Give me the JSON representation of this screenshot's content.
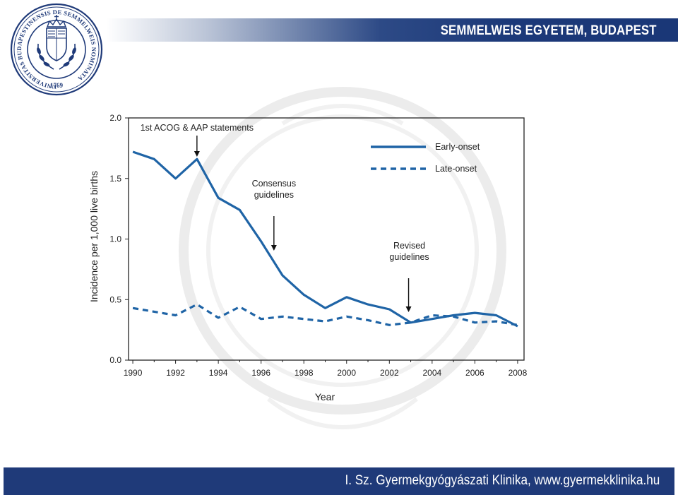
{
  "header": {
    "title": "SEMMELWEIS EGYETEM, BUDAPEST",
    "logo_ring_text": "UNIVERSITAS BUDAPESTINENSIS DE SEMMELWEIS NOMINATA",
    "logo_year": "1769"
  },
  "footer": {
    "text": "I. Sz. Gyermekgyógyászati Klinika, www.gyermekklinika.hu"
  },
  "colors": {
    "brand_navy": "#1f3a79",
    "series_blue": "#1f64a6"
  },
  "chart_data": {
    "type": "line",
    "xlabel": "Year",
    "ylabel": "Incidence per 1,000 live births",
    "xlim": [
      1989.8,
      2008.3
    ],
    "ylim": [
      0.0,
      2.0
    ],
    "x_ticks": [
      1990,
      1992,
      1994,
      1996,
      1998,
      2000,
      2002,
      2004,
      2006,
      2008
    ],
    "y_ticks": [
      "0.0",
      "0.5",
      "1.0",
      "1.5",
      "2.0"
    ],
    "grid": false,
    "legend_position": "top-right",
    "x": [
      1990,
      1991,
      1992,
      1993,
      1994,
      1995,
      1996,
      1997,
      1998,
      1999,
      2000,
      2001,
      2002,
      2003,
      2004,
      2005,
      2006,
      2007,
      2008
    ],
    "series": [
      {
        "name": "Early-onset",
        "style": "solid",
        "values": [
          1.72,
          1.66,
          1.5,
          1.66,
          1.34,
          1.24,
          0.98,
          0.7,
          0.54,
          0.43,
          0.52,
          0.46,
          0.42,
          0.31,
          0.34,
          0.37,
          0.39,
          0.37,
          0.28
        ]
      },
      {
        "name": "Late-onset",
        "style": "dashed",
        "values": [
          0.43,
          0.4,
          0.37,
          0.46,
          0.35,
          0.44,
          0.34,
          0.36,
          0.34,
          0.32,
          0.36,
          0.33,
          0.29,
          0.31,
          0.37,
          0.36,
          0.31,
          0.32,
          0.29
        ]
      }
    ],
    "annotations": [
      {
        "lines": [
          "1st ACOG & AAP statements"
        ],
        "x": 1993
      },
      {
        "lines": [
          "Consensus",
          "guidelines"
        ],
        "x": 1996.6
      },
      {
        "lines": [
          "Revised",
          "guidelines"
        ],
        "x": 2002.9
      }
    ]
  }
}
